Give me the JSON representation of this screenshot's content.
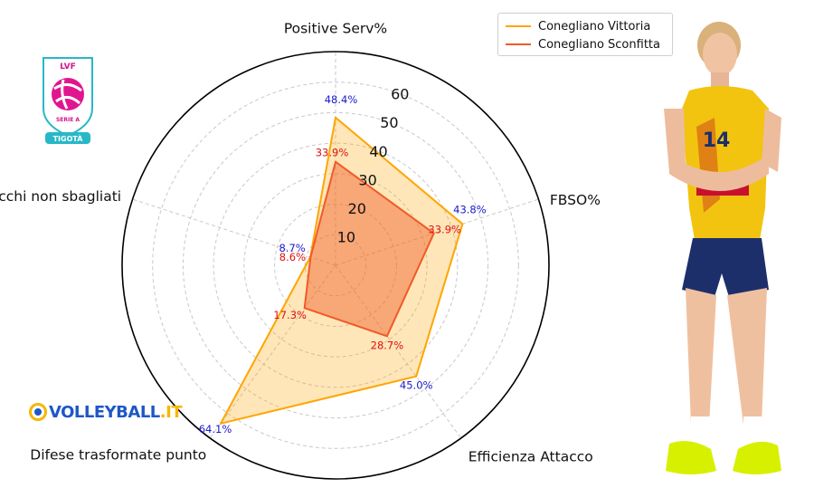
{
  "legend": {
    "series_1": "Conegliano Vittoria",
    "series_2": "Conegliano Sconfitta"
  },
  "logos": {
    "lvf_top": "LVF",
    "lvf_middle": "SERIE A",
    "lvf_bottom": "TIGOTÀ",
    "volleyball_main": "VOLLEYBALL",
    "volleyball_suffix": ".IT"
  },
  "player": {
    "jersey_number": "14"
  },
  "colors": {
    "vittoria": "#FFA500",
    "sconfitta": "#F05A28",
    "vittoria_label": "#1a1acc",
    "sconfitta_label": "#e01010"
  },
  "chart_data": {
    "type": "radar",
    "categories": [
      "Positive Serv%",
      "FBSO%",
      "Efficienza Attacco",
      "Difese trasformate punto",
      "Muri su attacchi non sbagliati"
    ],
    "radial_ticks": [
      "10",
      "20",
      "30",
      "40",
      "50",
      "60"
    ],
    "rlim": [
      0,
      70
    ],
    "grid": true,
    "legend_position": "top-right",
    "series": [
      {
        "name": "Conegliano Vittoria",
        "values": [
          48.4,
          43.8,
          45.0,
          64.1,
          8.7
        ],
        "labels": [
          "48.4%",
          "43.8%",
          "45.0%",
          "64.1%",
          "8.7%"
        ]
      },
      {
        "name": "Conegliano Sconfitta",
        "values": [
          33.9,
          33.9,
          28.7,
          17.3,
          8.6
        ],
        "labels": [
          "33.9%",
          "33.9%",
          "28.7%",
          "17.3%",
          "8.6%"
        ]
      }
    ]
  }
}
